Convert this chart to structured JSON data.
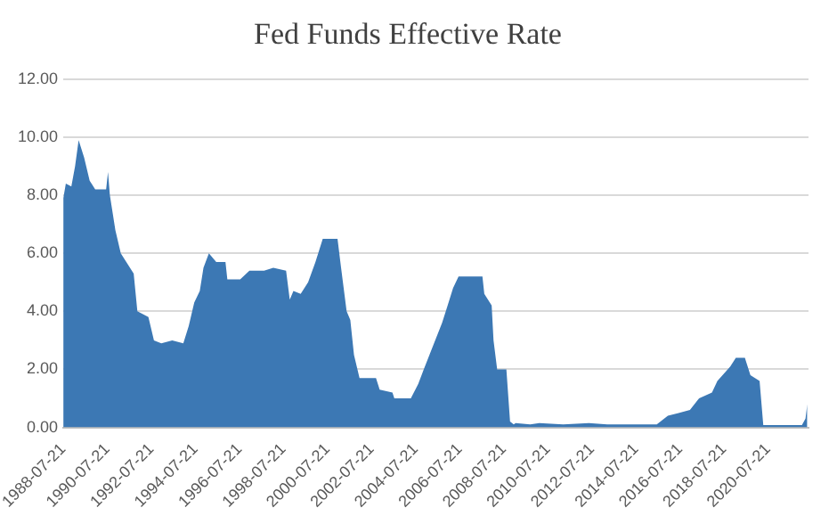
{
  "chart_data": {
    "type": "area",
    "title": "Fed Funds Effective Rate",
    "x": [
      "1988-07-21",
      "1988-09",
      "1988-12",
      "1989-02",
      "1989-04",
      "1989-07",
      "1989-10",
      "1990-01",
      "1990-07",
      "1990-08",
      "1990-09",
      "1990-12",
      "1991-03",
      "1991-05",
      "1991-10",
      "1991-12",
      "1992-06",
      "1992-09",
      "1993-01",
      "1993-07",
      "1994-01",
      "1994-04",
      "1994-07",
      "1994-10",
      "1994-12",
      "1995-03",
      "1995-07",
      "1995-12",
      "1996-01",
      "1996-08",
      "1997-01",
      "1997-09",
      "1998-02",
      "1998-09",
      "1998-11",
      "1999-01",
      "1999-05",
      "1999-09",
      "2000-01",
      "2000-05",
      "2001-01",
      "2001-03",
      "2001-06",
      "2001-08",
      "2001-10",
      "2002-01",
      "2002-10",
      "2002-12",
      "2003-07",
      "2003-08",
      "2004-05",
      "2004-09",
      "2004-12",
      "2005-05",
      "2005-10",
      "2006-01",
      "2006-04",
      "2006-07",
      "2007-08",
      "2007-09",
      "2008-01",
      "2008-02",
      "2008-04",
      "2008-09",
      "2008-11",
      "2009-01",
      "2009-02",
      "2009-10",
      "2010-03",
      "2011-04",
      "2012-06",
      "2013-04",
      "2015-07",
      "2016-01",
      "2017-01",
      "2017-06",
      "2018-01",
      "2018-04",
      "2018-11",
      "2019-02",
      "2019-07",
      "2019-10",
      "2020-03",
      "2020-05",
      "2022-02",
      "2022-04",
      "2022-05"
    ],
    "series": [
      {
        "color": "#3c78b4",
        "values": [
          7.9,
          8.4,
          8.3,
          9.0,
          9.9,
          9.3,
          8.5,
          8.2,
          8.2,
          8.8,
          8.0,
          6.8,
          6.0,
          5.8,
          5.3,
          4.0,
          3.8,
          3.0,
          2.9,
          3.0,
          2.9,
          3.5,
          4.3,
          4.7,
          5.5,
          6.0,
          5.7,
          5.7,
          5.1,
          5.1,
          5.4,
          5.4,
          5.5,
          5.4,
          4.4,
          4.7,
          4.6,
          5.0,
          5.7,
          6.5,
          6.5,
          5.5,
          4.0,
          3.7,
          2.5,
          1.7,
          1.7,
          1.3,
          1.2,
          1.0,
          1.0,
          1.5,
          2.0,
          2.8,
          3.6,
          4.2,
          4.8,
          5.2,
          5.2,
          4.6,
          4.2,
          3.0,
          2.0,
          2.0,
          0.2,
          0.1,
          0.15,
          0.1,
          0.15,
          0.1,
          0.15,
          0.1,
          0.1,
          0.4,
          0.6,
          1.0,
          1.2,
          1.6,
          2.1,
          2.4,
          2.4,
          1.8,
          1.6,
          0.08,
          0.08,
          0.3,
          0.8
        ]
      }
    ],
    "xlim": [
      "1988-07-21",
      "2022-05-21"
    ],
    "xticks": [
      "1988-07-21",
      "1990-07-21",
      "1992-07-21",
      "1994-07-21",
      "1996-07-21",
      "1998-07-21",
      "2000-07-21",
      "2002-07-21",
      "2004-07-21",
      "2006-07-21",
      "2008-07-21",
      "2010-07-21",
      "2012-07-21",
      "2014-07-21",
      "2016-07-21",
      "2018-07-21",
      "2020-07-21"
    ],
    "ylim": [
      0,
      12
    ],
    "yticks": [
      {
        "value": 0,
        "label": "0.00"
      },
      {
        "value": 2,
        "label": "2.00"
      },
      {
        "value": 4,
        "label": "4.00"
      },
      {
        "value": 6,
        "label": "6.00"
      },
      {
        "value": 8,
        "label": "8.00"
      },
      {
        "value": 10,
        "label": "10.00"
      },
      {
        "value": 12,
        "label": "12.00"
      }
    ],
    "grid": "y",
    "legend": false
  }
}
